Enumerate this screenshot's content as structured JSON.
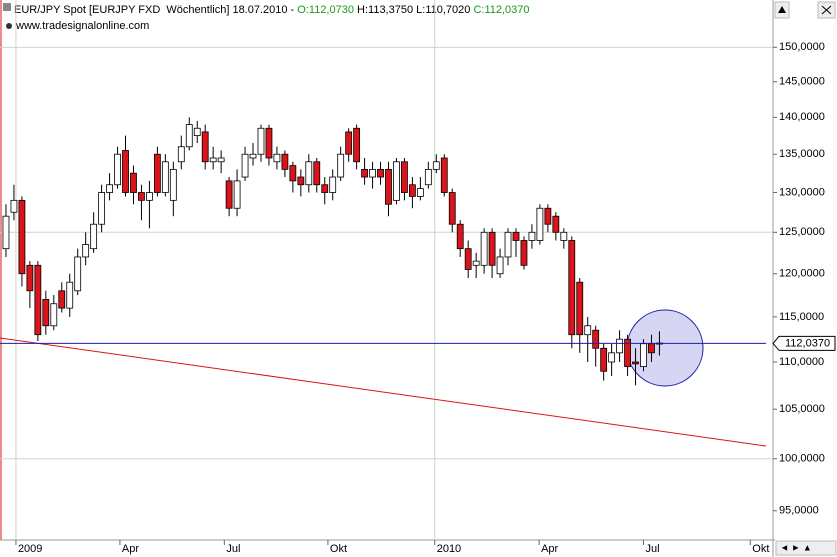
{
  "header": {
    "instrument": "EUR/JPY Spot [EURJPY FXD  Wöchentlich] 18.07.2010 - ",
    "open": "O:112,0730",
    "high_low": " H:113,3750 L:110,7020 ",
    "close": "C:112,0370",
    "source": "www.tradesignalonline.com"
  },
  "chart_data": {
    "type": "candlestick",
    "log_scale": true,
    "up_color": "#ffffff",
    "down_color": "#d9141b",
    "last_line_color": "#1c1ca8",
    "categories": [
      null,
      null,
      null,
      null,
      null,
      null,
      null,
      null,
      null,
      null,
      null,
      null,
      null,
      null,
      null,
      null,
      null,
      null,
      null,
      null,
      null,
      null,
      null,
      null,
      null,
      null,
      null,
      null,
      null,
      null,
      null,
      null,
      null,
      null,
      null,
      null,
      null,
      null,
      null,
      null,
      null,
      null,
      null,
      null,
      null,
      null,
      null,
      null,
      null,
      null,
      null,
      null,
      null,
      null,
      null,
      null,
      null,
      null,
      null,
      null,
      null,
      null,
      null,
      null,
      null,
      null,
      null,
      null,
      null,
      null,
      null,
      null,
      null,
      null,
      null,
      null,
      null,
      null,
      null,
      null,
      null,
      null,
      null
    ],
    "open": [
      123,
      127.5,
      129,
      121,
      121,
      117,
      114,
      118,
      116,
      118,
      122,
      123,
      126,
      130,
      131,
      135.5,
      132.5,
      130,
      129,
      135,
      130,
      129,
      134,
      136,
      137.5,
      138,
      134,
      134,
      131.5,
      128,
      132,
      134.5,
      135,
      138.5,
      134,
      135,
      133.5,
      132,
      131,
      134,
      131,
      130,
      132,
      138,
      138.5,
      133,
      132,
      133,
      133,
      129,
      134,
      131,
      129.5,
      131,
      133,
      134.5,
      130,
      126,
      123,
      121,
      121,
      125,
      120,
      122,
      125,
      124,
      124,
      124,
      128,
      127,
      124,
      124,
      119,
      113,
      113.5,
      111.5,
      110,
      111,
      112.5,
      110,
      109.5,
      112,
      112.073
    ],
    "high": [
      128.5,
      131,
      129.5,
      121.5,
      121.5,
      118,
      117.5,
      119,
      120,
      123,
      125,
      127.5,
      131,
      132.5,
      136,
      137.5,
      133.5,
      131,
      131.5,
      136,
      135,
      134,
      137.5,
      140,
      139.5,
      139,
      136,
      135.5,
      132,
      133,
      136,
      136.5,
      139,
      139,
      136,
      135.5,
      134,
      133,
      135,
      134.5,
      132,
      133,
      136,
      138.5,
      139,
      134.5,
      134,
      134,
      134,
      134.5,
      134.5,
      132,
      132,
      134,
      135,
      135,
      130.5,
      126.5,
      124,
      122.5,
      125.5,
      125.5,
      123,
      125.5,
      125.5,
      124.5,
      126,
      128.5,
      128.5,
      127.5,
      125.5,
      124.5,
      119.5,
      115,
      114,
      112,
      112,
      113.5,
      113,
      111.5,
      112.5,
      113,
      113.375
    ],
    "low": [
      122,
      126.5,
      118.5,
      116,
      112.3,
      113,
      113.5,
      115.5,
      115,
      117.5,
      121,
      122.5,
      125,
      129,
      130.5,
      129.5,
      128.5,
      126.5,
      125.5,
      129.5,
      129.5,
      127,
      133,
      135.5,
      136.5,
      133,
      133,
      132.5,
      127,
      127,
      131.5,
      133.5,
      134,
      133.5,
      133,
      132,
      130,
      129.5,
      130,
      130,
      128.5,
      129,
      131.5,
      134,
      133,
      131,
      130.5,
      131,
      127,
      128.5,
      129,
      128,
      129,
      130.5,
      132.5,
      129.5,
      125,
      122,
      119.5,
      119.5,
      120,
      119.5,
      119.5,
      121,
      122,
      120.5,
      123,
      123.5,
      125,
      124,
      123,
      111.5,
      111,
      110,
      109.5,
      108,
      108.5,
      110,
      108.5,
      107.5,
      109,
      110,
      110.702
    ],
    "close": [
      127,
      129,
      120,
      118,
      113,
      114,
      116.5,
      116,
      119,
      122,
      123.5,
      126,
      130,
      131,
      135,
      130,
      130,
      129,
      130,
      130,
      134,
      133,
      136,
      139,
      138.5,
      134,
      134.5,
      134.5,
      128,
      131.5,
      135,
      135,
      138.5,
      134.5,
      135,
      133,
      131.5,
      131,
      134,
      131,
      130,
      132,
      135,
      135,
      134,
      132,
      133,
      132,
      128.5,
      134,
      130,
      129.5,
      130.5,
      133,
      134,
      130,
      126,
      123,
      120.5,
      121.5,
      125,
      121,
      122,
      125,
      124,
      121,
      125,
      128,
      126,
      125,
      125,
      113,
      113,
      114,
      111.5,
      109,
      111,
      112.5,
      109.5,
      109.8,
      112,
      111,
      112.037
    ],
    "last_price_label": "112,0370",
    "ylim": [
      92.3,
      154.4
    ],
    "yticks": [
      {
        "value": 95,
        "label": "95,0000"
      },
      {
        "value": 100,
        "label": "100,0000"
      },
      {
        "value": 105,
        "label": "105,0000"
      },
      {
        "value": 110,
        "label": "110,0000"
      },
      {
        "value": 115,
        "label": "115,0000"
      },
      {
        "value": 120,
        "label": "120,0000"
      },
      {
        "value": 125,
        "label": "125,0000"
      },
      {
        "value": 130,
        "label": "130,0000"
      },
      {
        "value": 135,
        "label": "135,0000"
      },
      {
        "value": 140,
        "label": "140,0000"
      },
      {
        "value": 145,
        "label": "145,0000"
      },
      {
        "value": 150,
        "label": "150,0000"
      }
    ],
    "xlim": [
      -0.75,
      96.25
    ],
    "xticks": [
      {
        "value": 1.25,
        "label": "2009"
      },
      {
        "value": 14.3,
        "label": "Apr"
      },
      {
        "value": 27.4,
        "label": "Jul"
      },
      {
        "value": 40.4,
        "label": "Okt"
      },
      {
        "value": 53.8,
        "label": "2010"
      },
      {
        "value": 66.9,
        "label": "Apr"
      },
      {
        "value": 80,
        "label": "Jul"
      },
      {
        "value": 93.4,
        "label": "Okt"
      }
    ]
  }
}
